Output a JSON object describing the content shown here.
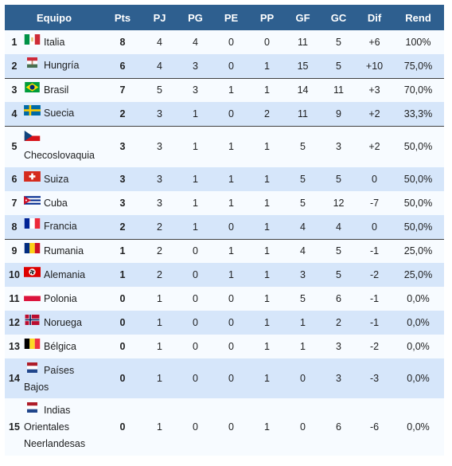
{
  "headers": [
    "Equipo",
    "Pts",
    "PJ",
    "PG",
    "PE",
    "PP",
    "GF",
    "GC",
    "Dif",
    "Rend"
  ],
  "rows": [
    {
      "pos": "1",
      "team": "Italia",
      "flag": "italy-flag",
      "pts": "8",
      "pj": "4",
      "pg": "4",
      "pe": "0",
      "pp": "0",
      "gf": "11",
      "gc": "5",
      "dif": "+6",
      "rend": "100%"
    },
    {
      "pos": "2",
      "team": "Hungría",
      "flag": "hungary-flag",
      "pts": "6",
      "pj": "4",
      "pg": "3",
      "pe": "0",
      "pp": "1",
      "gf": "15",
      "gc": "5",
      "dif": "+10",
      "rend": "75,0%"
    },
    {
      "pos": "3",
      "team": "Brasil",
      "flag": "brazil-flag",
      "pts": "7",
      "pj": "5",
      "pg": "3",
      "pe": "1",
      "pp": "1",
      "gf": "14",
      "gc": "11",
      "dif": "+3",
      "rend": "70,0%"
    },
    {
      "pos": "4",
      "team": "Suecia",
      "flag": "sweden-flag",
      "pts": "2",
      "pj": "3",
      "pg": "1",
      "pe": "0",
      "pp": "2",
      "gf": "11",
      "gc": "9",
      "dif": "+2",
      "rend": "33,3%"
    },
    {
      "pos": "5",
      "team": "Checoslovaquia",
      "flag": "czechoslovakia-flag",
      "pts": "3",
      "pj": "3",
      "pg": "1",
      "pe": "1",
      "pp": "1",
      "gf": "5",
      "gc": "3",
      "dif": "+2",
      "rend": "50,0%"
    },
    {
      "pos": "6",
      "team": "Suiza",
      "flag": "switzerland-flag",
      "pts": "3",
      "pj": "3",
      "pg": "1",
      "pe": "1",
      "pp": "1",
      "gf": "5",
      "gc": "5",
      "dif": "0",
      "rend": "50,0%"
    },
    {
      "pos": "7",
      "team": "Cuba",
      "flag": "cuba-flag",
      "pts": "3",
      "pj": "3",
      "pg": "1",
      "pe": "1",
      "pp": "1",
      "gf": "5",
      "gc": "12",
      "dif": "-7",
      "rend": "50,0%"
    },
    {
      "pos": "8",
      "team": "Francia",
      "flag": "france-flag",
      "pts": "2",
      "pj": "2",
      "pg": "1",
      "pe": "0",
      "pp": "1",
      "gf": "4",
      "gc": "4",
      "dif": "0",
      "rend": "50,0%"
    },
    {
      "pos": "9",
      "team": "Rumania",
      "flag": "romania-flag",
      "pts": "1",
      "pj": "2",
      "pg": "0",
      "pe": "1",
      "pp": "1",
      "gf": "4",
      "gc": "5",
      "dif": "-1",
      "rend": "25,0%"
    },
    {
      "pos": "10",
      "team": "Alemania",
      "flag": "germany-1935-flag",
      "pts": "1",
      "pj": "2",
      "pg": "0",
      "pe": "1",
      "pp": "1",
      "gf": "3",
      "gc": "5",
      "dif": "-2",
      "rend": "25,0%"
    },
    {
      "pos": "11",
      "team": "Polonia",
      "flag": "poland-flag",
      "pts": "0",
      "pj": "1",
      "pg": "0",
      "pe": "0",
      "pp": "1",
      "gf": "5",
      "gc": "6",
      "dif": "-1",
      "rend": "0,0%"
    },
    {
      "pos": "12",
      "team": "Noruega",
      "flag": "norway-flag",
      "pts": "0",
      "pj": "1",
      "pg": "0",
      "pe": "0",
      "pp": "1",
      "gf": "1",
      "gc": "2",
      "dif": "-1",
      "rend": "0,0%"
    },
    {
      "pos": "13",
      "team": "Bélgica",
      "flag": "belgium-flag",
      "pts": "0",
      "pj": "1",
      "pg": "0",
      "pe": "0",
      "pp": "1",
      "gf": "1",
      "gc": "3",
      "dif": "-2",
      "rend": "0,0%"
    },
    {
      "pos": "14",
      "team": "Países Bajos",
      "flag": "netherlands-flag",
      "pts": "0",
      "pj": "1",
      "pg": "0",
      "pe": "0",
      "pp": "1",
      "gf": "0",
      "gc": "3",
      "dif": "-3",
      "rend": "0,0%"
    },
    {
      "pos": "15",
      "team": "Indias Orientales Neerlandesas",
      "flag": "netherlands-flag",
      "pts": "0",
      "pj": "1",
      "pg": "0",
      "pe": "0",
      "pp": "1",
      "gf": "0",
      "gc": "6",
      "dif": "-6",
      "rend": "0,0%"
    }
  ]
}
